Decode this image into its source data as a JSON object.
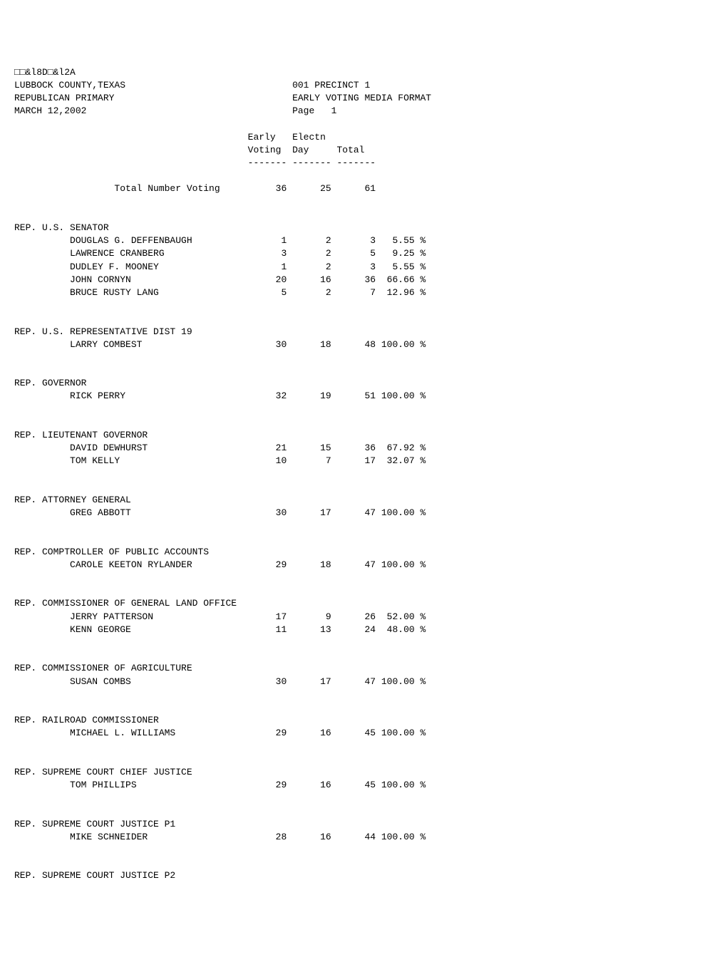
{
  "header": {
    "code": "□□&l8D□&l2A",
    "county": "LUBBOCK COUNTY,TEXAS",
    "precinct": "001 PRECINCT 1",
    "primary": "REPUBLICAN PRIMARY",
    "format": "EARLY VOTING MEDIA FORMAT",
    "date": "MARCH 12,2002",
    "page": "Page   1"
  },
  "columns": {
    "c1a": "Early",
    "c1b": "Voting",
    "c2a": "Electn",
    "c2b": "Day",
    "c3": "Total"
  },
  "totals": {
    "label": "Total Number Voting",
    "early": "36",
    "electn": "25",
    "total": "61"
  },
  "sections": [
    {
      "title": "REP. U.S. SENATOR",
      "rows": [
        {
          "name": "DOUGLAS G. DEFFENBAUGH",
          "early": "1",
          "electn": "2",
          "total": "3",
          "pct": "5.55 %"
        },
        {
          "name": "LAWRENCE CRANBERG",
          "early": "3",
          "electn": "2",
          "total": "5",
          "pct": "9.25 %"
        },
        {
          "name": "DUDLEY F. MOONEY",
          "early": "1",
          "electn": "2",
          "total": "3",
          "pct": "5.55 %"
        },
        {
          "name": "JOHN CORNYN",
          "early": "20",
          "electn": "16",
          "total": "36",
          "pct": "66.66 %"
        },
        {
          "name": "BRUCE RUSTY LANG",
          "early": "5",
          "electn": "2",
          "total": "7",
          "pct": "12.96 %"
        }
      ]
    },
    {
      "title": "REP. U.S. REPRESENTATIVE DIST 19",
      "rows": [
        {
          "name": "LARRY COMBEST",
          "early": "30",
          "electn": "18",
          "total": "48",
          "pct": "100.00 %"
        }
      ]
    },
    {
      "title": "REP. GOVERNOR",
      "rows": [
        {
          "name": "RICK PERRY",
          "early": "32",
          "electn": "19",
          "total": "51",
          "pct": "100.00 %"
        }
      ]
    },
    {
      "title": "REP. LIEUTENANT GOVERNOR",
      "rows": [
        {
          "name": "DAVID DEWHURST",
          "early": "21",
          "electn": "15",
          "total": "36",
          "pct": "67.92 %"
        },
        {
          "name": "TOM KELLY",
          "early": "10",
          "electn": "7",
          "total": "17",
          "pct": "32.07 %"
        }
      ]
    },
    {
      "title": "REP. ATTORNEY GENERAL",
      "rows": [
        {
          "name": "GREG ABBOTT",
          "early": "30",
          "electn": "17",
          "total": "47",
          "pct": "100.00 %"
        }
      ]
    },
    {
      "title": "REP. COMPTROLLER OF PUBLIC ACCOUNTS",
      "rows": [
        {
          "name": "CAROLE KEETON RYLANDER",
          "early": "29",
          "electn": "18",
          "total": "47",
          "pct": "100.00 %"
        }
      ]
    },
    {
      "title": "REP. COMMISSIONER OF GENERAL LAND OFFICE",
      "rows": [
        {
          "name": "JERRY PATTERSON",
          "early": "17",
          "electn": "9",
          "total": "26",
          "pct": "52.00 %"
        },
        {
          "name": "KENN GEORGE",
          "early": "11",
          "electn": "13",
          "total": "24",
          "pct": "48.00 %"
        }
      ]
    },
    {
      "title": "REP. COMMISSIONER OF AGRICULTURE",
      "rows": [
        {
          "name": "SUSAN COMBS",
          "early": "30",
          "electn": "17",
          "total": "47",
          "pct": "100.00 %"
        }
      ]
    },
    {
      "title": "REP. RAILROAD COMMISSIONER",
      "rows": [
        {
          "name": "MICHAEL L. WILLIAMS",
          "early": "29",
          "electn": "16",
          "total": "45",
          "pct": "100.00 %"
        }
      ]
    },
    {
      "title": "REP. SUPREME COURT CHIEF JUSTICE",
      "rows": [
        {
          "name": "TOM PHILLIPS",
          "early": "29",
          "electn": "16",
          "total": "45",
          "pct": "100.00 %"
        }
      ]
    },
    {
      "title": "REP. SUPREME COURT JUSTICE P1",
      "rows": [
        {
          "name": "MIKE SCHNEIDER",
          "early": "28",
          "electn": "16",
          "total": "44",
          "pct": "100.00 %"
        }
      ]
    },
    {
      "title": "REP. SUPREME COURT JUSTICE P2",
      "rows": []
    }
  ]
}
